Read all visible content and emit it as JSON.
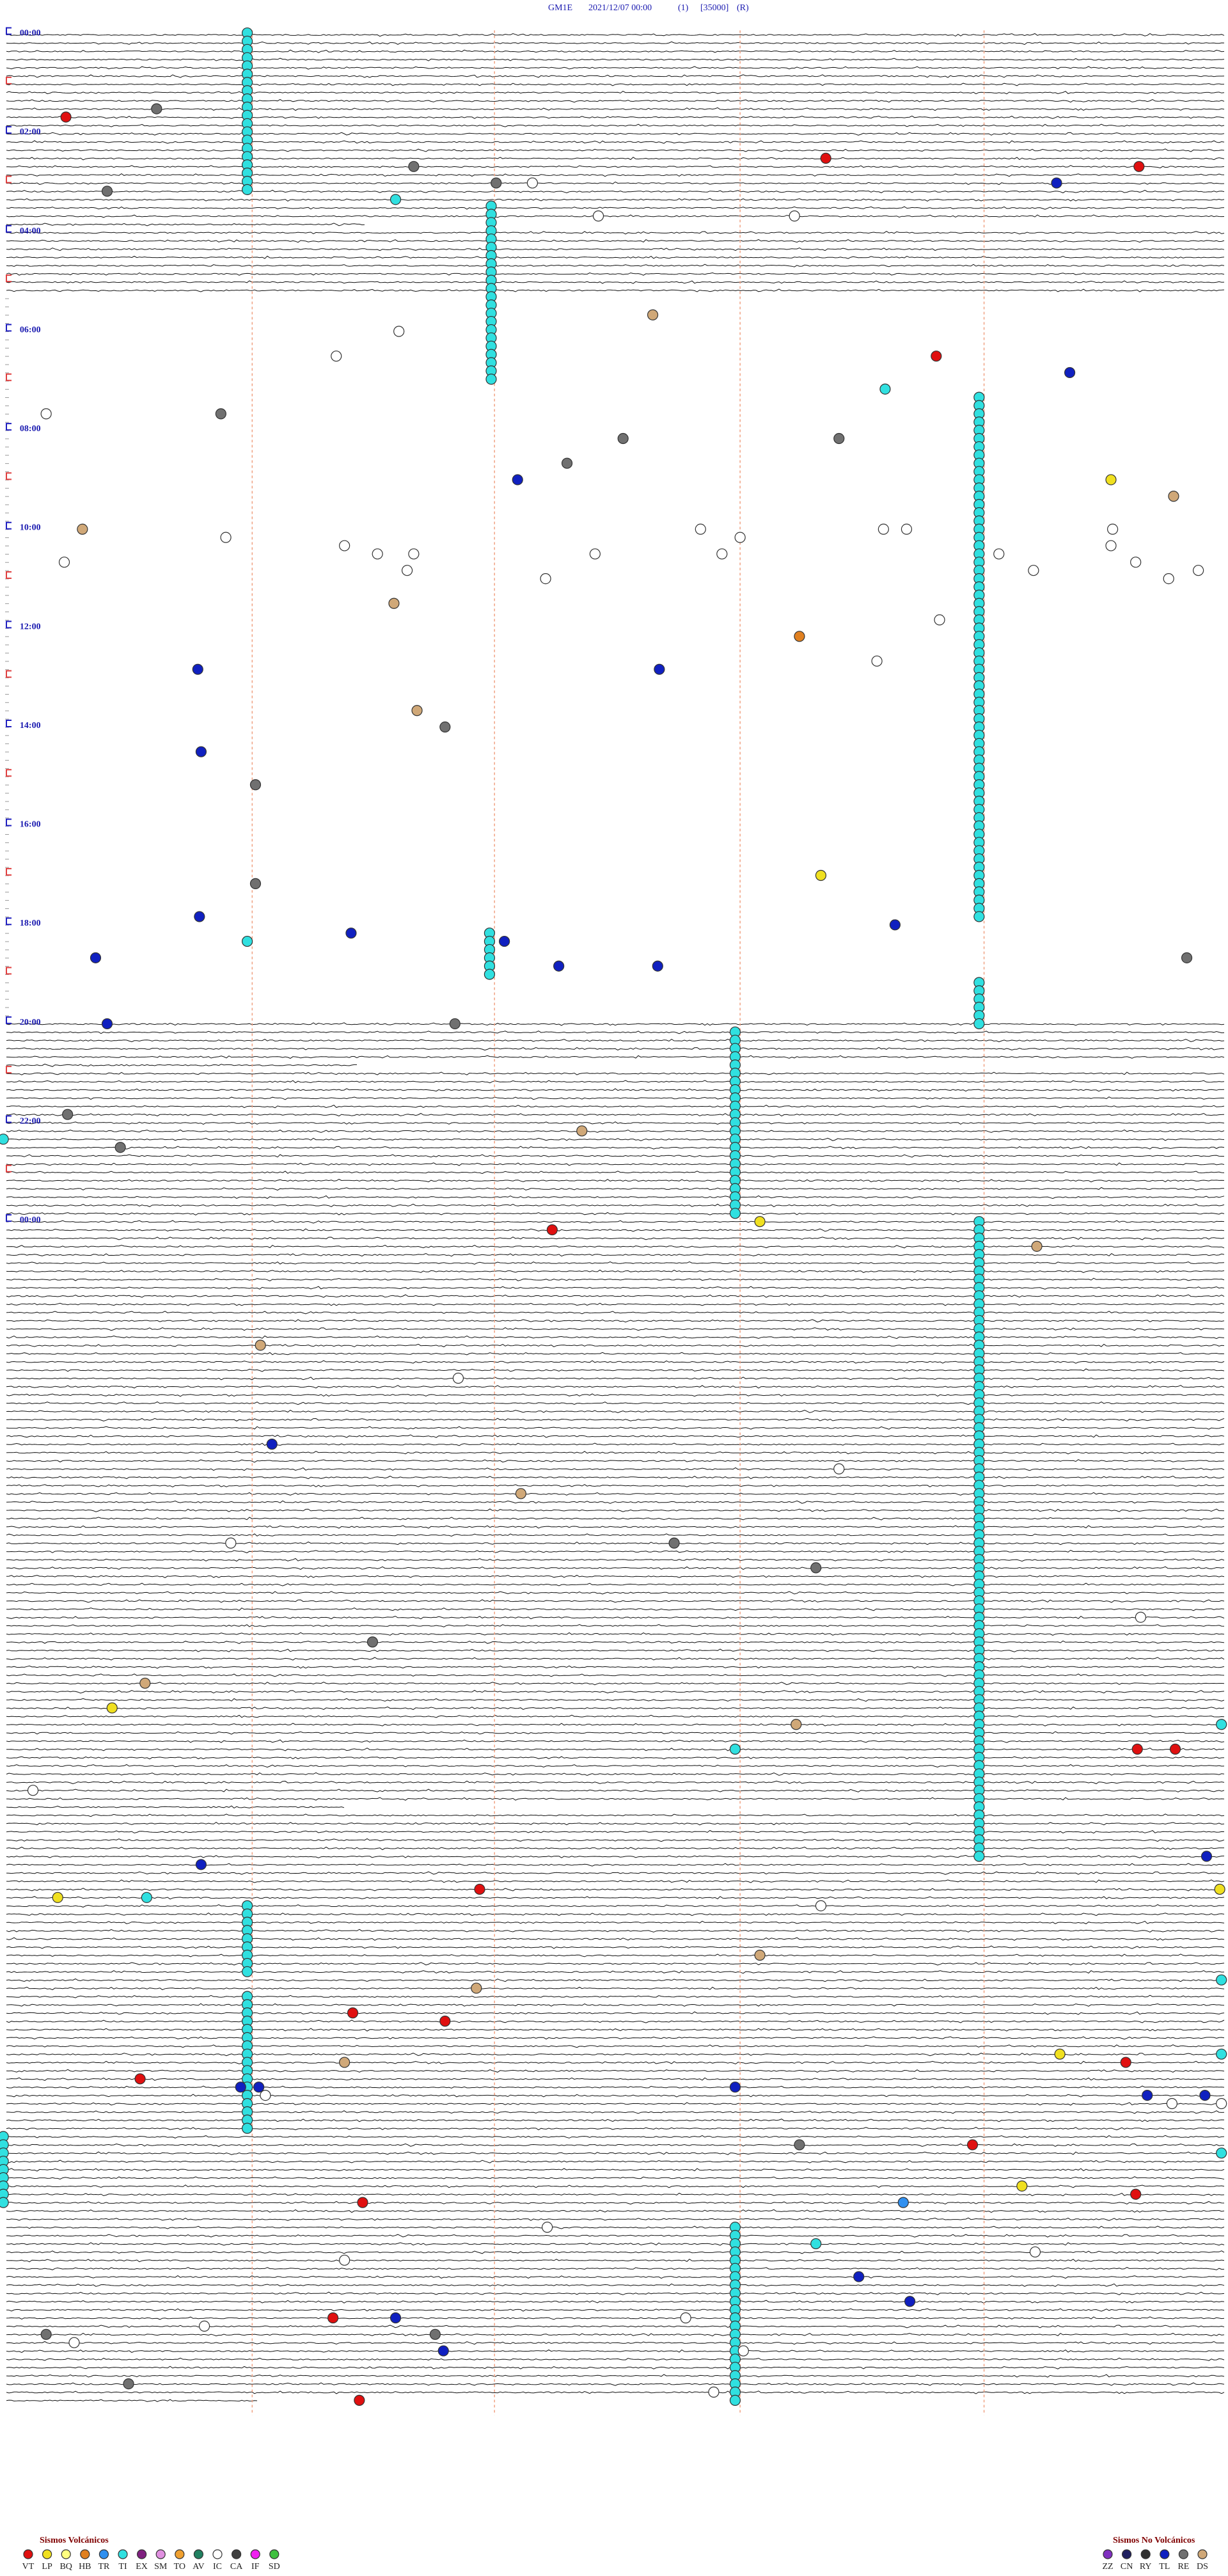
{
  "header": {
    "station": "GM1E",
    "date": "2021/12/07 00:00",
    "channel": "(1)",
    "scale": "[35000]",
    "mode": "(R)"
  },
  "hour_labels": [
    "00:00",
    "02:00",
    "04:00",
    "06:00",
    "08:00",
    "10:00",
    "12:00",
    "14:00",
    "16:00",
    "18:00",
    "20:00",
    "22:00",
    "00:00"
  ],
  "legend": {
    "volcanic": {
      "title": "Sismos Volcánicos",
      "items": [
        {
          "code": "VT",
          "color": "#e01010"
        },
        {
          "code": "LP",
          "color": "#f0e020"
        },
        {
          "code": "BQ",
          "color": "#ffff80"
        },
        {
          "code": "HB",
          "color": "#e08020"
        },
        {
          "code": "TR",
          "color": "#3090f0"
        },
        {
          "code": "TI",
          "color": "#30e0e0"
        },
        {
          "code": "EX",
          "color": "#802080"
        },
        {
          "code": "SM",
          "color": "#e090e0"
        },
        {
          "code": "TO",
          "color": "#f0a030"
        },
        {
          "code": "AV",
          "color": "#208060"
        },
        {
          "code": "IC",
          "color": "#ffffff"
        },
        {
          "code": "CA",
          "color": "#404040"
        },
        {
          "code": "IF",
          "color": "#f020f0"
        },
        {
          "code": "SD",
          "color": "#40c040"
        }
      ]
    },
    "non_volcanic": {
      "title": "Sismos No Volcánicos",
      "items": [
        {
          "code": "ZZ",
          "color": "#8030c0"
        },
        {
          "code": "CN",
          "color": "#202060"
        },
        {
          "code": "RY",
          "color": "#303030"
        },
        {
          "code": "TL",
          "color": "#1020c0"
        },
        {
          "code": "RE",
          "color": "#707070"
        },
        {
          "code": "DS",
          "color": "#d0a878"
        }
      ]
    }
  }
}
